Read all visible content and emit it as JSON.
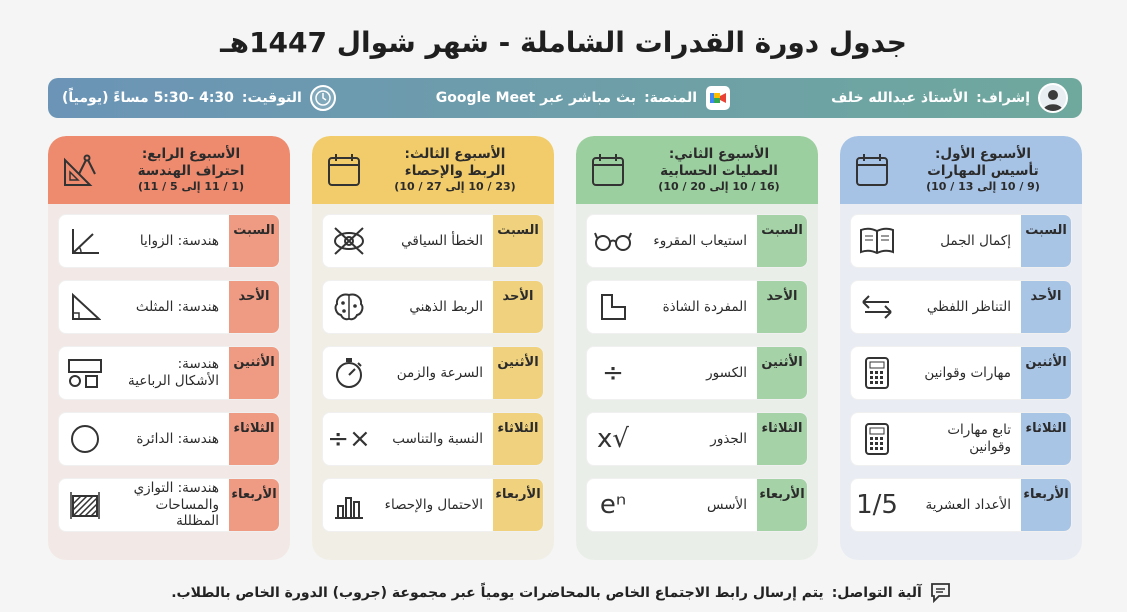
{
  "title": "جدول دورة القدرات الشاملة - شهر شوال 1447هـ",
  "infobar": {
    "supervisor_label": "إشراف:",
    "supervisor_name": "الأستاذ عبدالله خلف",
    "platform_label": "المنصة:",
    "platform_value": "بث مباشر عبر Google Meet",
    "timing_label": "التوقيت:",
    "timing_value": "4:30 -5:30 مساءً (يومياً)"
  },
  "weeks": [
    {
      "title": "الأسبوع الأول:",
      "subtitle": "تأسيس المهارات",
      "dates": "(9 / 10 إلى 13 / 10)",
      "days": [
        {
          "day": "السبت",
          "topic": "إكمال الجمل",
          "icon": "book-icon"
        },
        {
          "day": "الأحد",
          "topic": "التناظر اللفظي",
          "icon": "swap-arrows-icon"
        },
        {
          "day": "الأثنين",
          "topic": "مهارات وقوانين",
          "icon": "calculator-icon"
        },
        {
          "day": "الثلاثاء",
          "topic": "تابع مهارات وقوانين",
          "icon": "calculator-icon"
        },
        {
          "day": "الأربعاء",
          "topic": "الأعداد العشرية",
          "icon": "decimal-fraction-icon",
          "icon_text": "1/5"
        }
      ]
    },
    {
      "title": "الأسبوع الثاني:",
      "subtitle": "العمليات الحسابية",
      "dates": "(16 / 10 إلى 20 / 10)",
      "days": [
        {
          "day": "السبت",
          "topic": "استيعاب المقروء",
          "icon": "glasses-icon"
        },
        {
          "day": "الأحد",
          "topic": "المفردة الشاذة",
          "icon": "odd-shape-icon"
        },
        {
          "day": "الأثنين",
          "topic": "الكسور",
          "icon": "division-icon",
          "icon_text": "÷"
        },
        {
          "day": "الثلاثاء",
          "topic": "الجذور",
          "icon": "square-root-icon",
          "icon_text": "√x"
        },
        {
          "day": "الأربعاء",
          "topic": "الأسس",
          "icon": "exponent-icon",
          "icon_text": "eⁿ"
        }
      ]
    },
    {
      "title": "الأسبوع الثالث:",
      "subtitle": "الربط والإحصاء",
      "dates": "(23 / 10 إلى 27 / 10)",
      "days": [
        {
          "day": "السبت",
          "topic": "الخطأ السياقي",
          "icon": "crossed-eye-icon"
        },
        {
          "day": "الأحد",
          "topic": "الربط الذهني",
          "icon": "brain-icon"
        },
        {
          "day": "الأثنين",
          "topic": "السرعة والزمن",
          "icon": "stopwatch-icon"
        },
        {
          "day": "الثلاثاء",
          "topic": "النسبة والتناسب",
          "icon": "times-divide-icon",
          "icon_text": "×÷"
        },
        {
          "day": "الأربعاء",
          "topic": "الاحتمال والإحصاء",
          "icon": "bar-chart-icon"
        }
      ]
    },
    {
      "title": "الأسبوع الرابع:",
      "subtitle": "احتراف الهندسة",
      "dates": "(1 / 11 إلى 5 / 11)",
      "days": [
        {
          "day": "السبت",
          "topic": "هندسة: الزوايا",
          "icon": "angle-icon"
        },
        {
          "day": "الأحد",
          "topic": "هندسة: المثلث",
          "icon": "triangle-icon"
        },
        {
          "day": "الأثنين",
          "topic": "هندسة:\nالأشكال الرباعية",
          "icon": "quad-shapes-icon"
        },
        {
          "day": "الثلاثاء",
          "topic": "هندسة: الدائرة",
          "icon": "circle-icon"
        },
        {
          "day": "الأربعاء",
          "topic": "هندسة: التوازي\nوالمساحات المظللة",
          "icon": "shaded-area-icon"
        }
      ]
    }
  ],
  "footer": {
    "label": "آلية التواصل:",
    "text": "يتم إرسال رابط الاجتماع الخاص بالمحاضرات يومياً عبر مجموعة (جروب) الدورة الخاص بالطلاب."
  }
}
